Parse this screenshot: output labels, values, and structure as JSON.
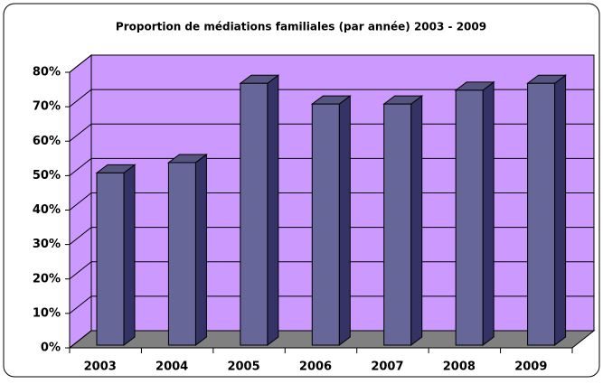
{
  "chart_data": {
    "type": "bar3d",
    "title": "Proportion de médiations familiales (par année) 2003 - 2009",
    "categories": [
      "2003",
      "2004",
      "2005",
      "2006",
      "2007",
      "2008",
      "2009"
    ],
    "values": [
      50,
      53,
      76,
      70,
      70,
      74,
      76
    ],
    "color": "#666699",
    "ylim": [
      0,
      80
    ],
    "yticks": [
      {
        "value": 0,
        "label": "0%"
      },
      {
        "value": 10,
        "label": "10%"
      },
      {
        "value": 20,
        "label": "20%"
      },
      {
        "value": 30,
        "label": "30%"
      },
      {
        "value": 40,
        "label": "40%"
      },
      {
        "value": 50,
        "label": "50%"
      },
      {
        "value": 60,
        "label": "60%"
      },
      {
        "value": 70,
        "label": "70%"
      },
      {
        "value": 80,
        "label": "80%"
      }
    ],
    "grid": true
  }
}
